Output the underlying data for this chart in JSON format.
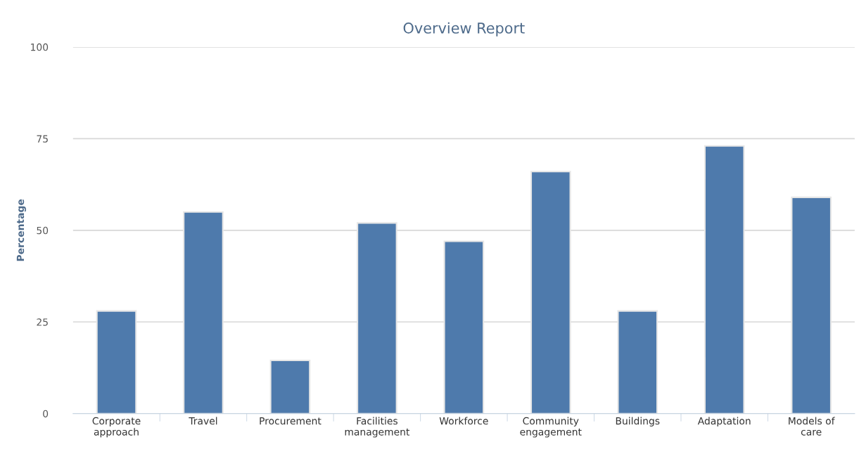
{
  "chart_data": {
    "type": "bar",
    "title": "Overview Report",
    "ylabel": "Percentage",
    "categories": [
      "Corporate\napproach",
      "Travel",
      "Procurement",
      "Facilities\nmanagement",
      "Workforce",
      "Community\nengagement",
      "Buildings",
      "Adaptation",
      "Models of\ncare"
    ],
    "values": [
      28,
      55,
      14.5,
      52,
      47,
      66,
      28,
      73,
      59
    ],
    "color": "#4e7aac",
    "ylim": [
      0,
      100
    ],
    "yticks": [
      0,
      25,
      50,
      75,
      100
    ],
    "grid": "y",
    "legend": false
  }
}
